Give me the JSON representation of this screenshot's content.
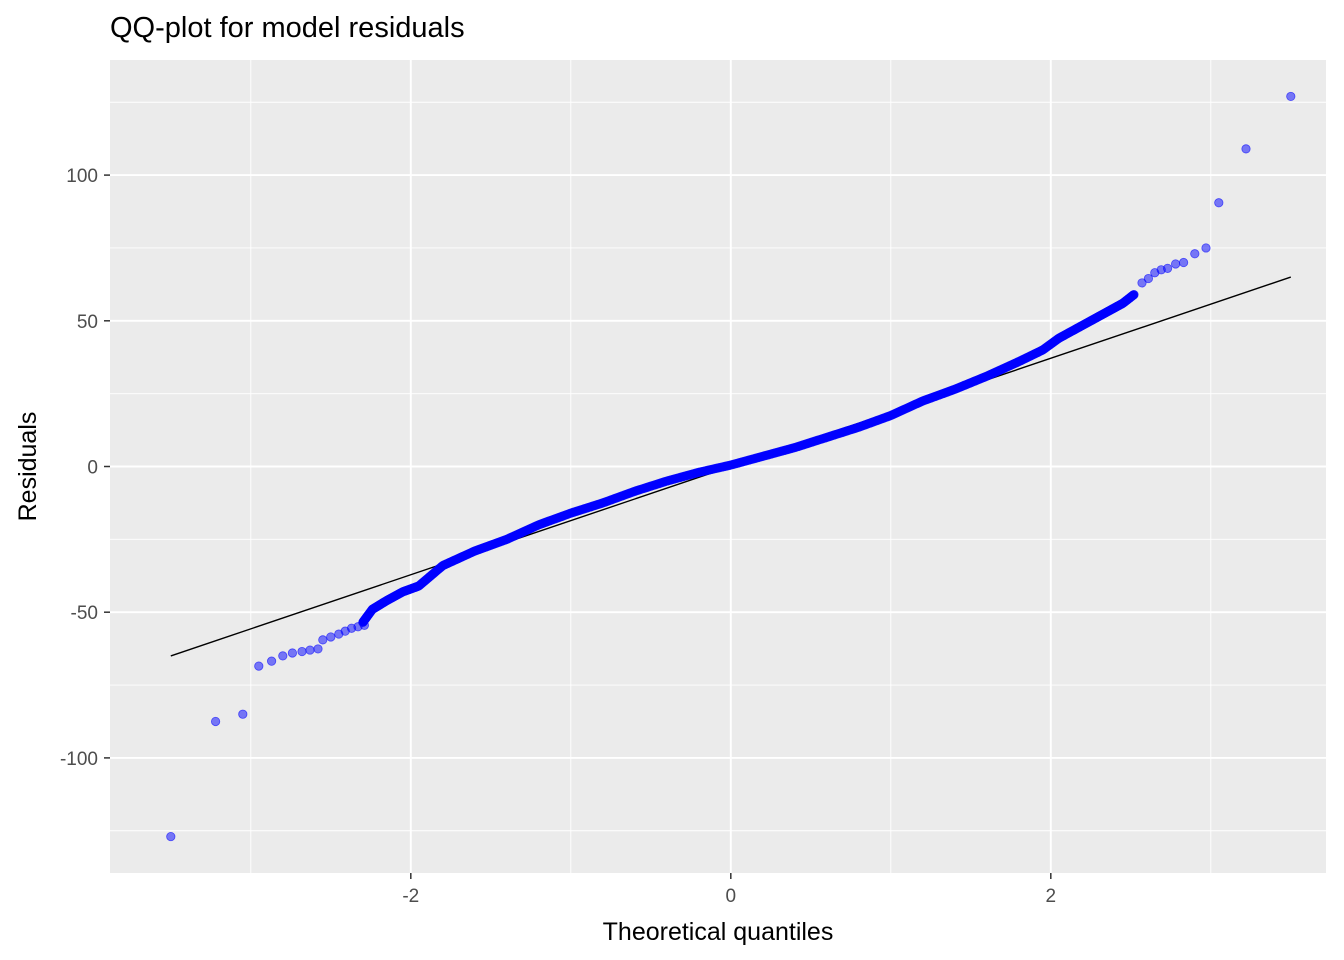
{
  "title": "QQ-plot for model residuals",
  "colors": {
    "panel_background": "#ebebeb",
    "grid_major": "#ffffff",
    "point_fill": "#0000ff",
    "reference_line": "#000000"
  },
  "chart_data": {
    "type": "scatter",
    "title": "QQ-plot for model residuals",
    "xlabel": "Theoretical quantiles",
    "ylabel": "Residuals",
    "xlim": [
      -3.88,
      3.72
    ],
    "ylim": [
      -139.5,
      139.5
    ],
    "x_ticks": [
      -2,
      0,
      2
    ],
    "x_tick_labels": [
      "-2",
      "0",
      "2"
    ],
    "y_ticks": [
      -100,
      -50,
      0,
      50,
      100
    ],
    "y_tick_labels": [
      "-100",
      "-50",
      "0",
      "50",
      "100"
    ],
    "grid": true,
    "point_alpha": 0.5,
    "reference_line": {
      "x": [
        -3.5,
        3.5
      ],
      "y": [
        -65,
        65
      ]
    },
    "outlier_points": [
      {
        "x": -3.5,
        "y": -127
      },
      {
        "x": -3.22,
        "y": -87.5
      },
      {
        "x": -3.05,
        "y": -85
      },
      {
        "x": -2.95,
        "y": -68.5
      },
      {
        "x": -2.87,
        "y": -66.8
      },
      {
        "x": -2.8,
        "y": -65
      },
      {
        "x": -2.74,
        "y": -64
      },
      {
        "x": -2.68,
        "y": -63.5
      },
      {
        "x": -2.63,
        "y": -63
      },
      {
        "x": -2.58,
        "y": -62.6
      },
      {
        "x": -2.55,
        "y": -59.5
      },
      {
        "x": -2.5,
        "y": -58.5
      },
      {
        "x": -2.45,
        "y": -57.5
      },
      {
        "x": -2.41,
        "y": -56.5
      },
      {
        "x": -2.37,
        "y": -55.5
      },
      {
        "x": -2.33,
        "y": -55
      },
      {
        "x": -2.29,
        "y": -54.5
      },
      {
        "x": 2.57,
        "y": 63
      },
      {
        "x": 2.61,
        "y": 64.5
      },
      {
        "x": 2.65,
        "y": 66.5
      },
      {
        "x": 2.69,
        "y": 67.5
      },
      {
        "x": 2.73,
        "y": 68
      },
      {
        "x": 2.78,
        "y": 69.5
      },
      {
        "x": 2.83,
        "y": 70
      },
      {
        "x": 2.9,
        "y": 73
      },
      {
        "x": 2.97,
        "y": 75
      },
      {
        "x": 3.05,
        "y": 90.5
      },
      {
        "x": 3.22,
        "y": 109
      },
      {
        "x": 3.5,
        "y": 127
      }
    ],
    "body_curve": {
      "x": [
        -2.3,
        -2.24,
        -2.15,
        -2.05,
        -1.95,
        -1.8,
        -1.6,
        -1.4,
        -1.2,
        -1.0,
        -0.8,
        -0.6,
        -0.4,
        -0.2,
        0.0,
        0.2,
        0.4,
        0.6,
        0.8,
        1.0,
        1.2,
        1.4,
        1.6,
        1.8,
        1.95,
        2.05,
        2.15,
        2.25,
        2.35,
        2.45,
        2.52
      ],
      "y": [
        -53.5,
        -49,
        -46,
        -43,
        -41,
        -34,
        -29,
        -25,
        -20,
        -16,
        -12.5,
        -8.5,
        -5,
        -2,
        0.5,
        3.5,
        6.5,
        10,
        13.5,
        17.5,
        22.5,
        26.5,
        31,
        36,
        40,
        44,
        47,
        50,
        53,
        56,
        59
      ]
    },
    "body_point_count": 900
  }
}
